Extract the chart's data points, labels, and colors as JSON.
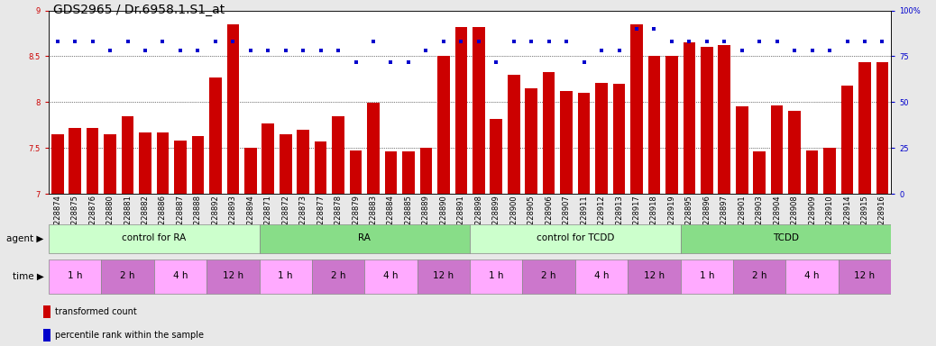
{
  "title": "GDS2965 / Dr.6958.1.S1_at",
  "samples": [
    "GSM228874",
    "GSM228875",
    "GSM228876",
    "GSM228880",
    "GSM228881",
    "GSM228882",
    "GSM228886",
    "GSM228887",
    "GSM228888",
    "GSM228892",
    "GSM228893",
    "GSM228894",
    "GSM228871",
    "GSM228872",
    "GSM228873",
    "GSM228877",
    "GSM228878",
    "GSM228879",
    "GSM228883",
    "GSM228884",
    "GSM228885",
    "GSM228889",
    "GSM228890",
    "GSM228891",
    "GSM228898",
    "GSM228899",
    "GSM228900",
    "GSM228905",
    "GSM228906",
    "GSM228907",
    "GSM228911",
    "GSM228912",
    "GSM228913",
    "GSM228917",
    "GSM228918",
    "GSM228919",
    "GSM228895",
    "GSM228896",
    "GSM228897",
    "GSM228901",
    "GSM228903",
    "GSM228904",
    "GSM228908",
    "GSM228909",
    "GSM228910",
    "GSM228914",
    "GSM228915",
    "GSM228916"
  ],
  "bar_values": [
    7.65,
    7.72,
    7.72,
    7.65,
    7.85,
    7.67,
    7.67,
    7.58,
    7.63,
    8.27,
    8.85,
    7.5,
    7.77,
    7.65,
    7.7,
    7.57,
    7.85,
    7.47,
    7.99,
    7.46,
    7.46,
    7.5,
    8.5,
    8.82,
    8.82,
    7.82,
    8.3,
    8.15,
    8.33,
    8.12,
    8.1,
    8.21,
    8.2,
    8.85,
    8.5,
    8.5,
    8.65,
    8.6,
    8.62,
    7.95,
    7.46,
    7.96,
    7.9,
    7.47,
    7.5,
    8.18,
    8.44,
    8.44
  ],
  "percentile_values": [
    83,
    83,
    83,
    78,
    83,
    78,
    83,
    78,
    78,
    83,
    83,
    78,
    78,
    78,
    78,
    78,
    78,
    72,
    83,
    72,
    72,
    78,
    83,
    83,
    83,
    72,
    83,
    83,
    83,
    83,
    72,
    78,
    78,
    90,
    90,
    83,
    83,
    83,
    83,
    78,
    83,
    83,
    78,
    78,
    78,
    83,
    83,
    83
  ],
  "ylim_left": [
    7.0,
    9.0
  ],
  "ylim_right": [
    0,
    100
  ],
  "yticks_left": [
    7.0,
    7.5,
    8.0,
    8.5,
    9.0
  ],
  "yticks_right": [
    0,
    25,
    50,
    75,
    100
  ],
  "ytick_labels_right": [
    "0",
    "25",
    "50",
    "75",
    "100%"
  ],
  "bar_color": "#cc0000",
  "dot_color": "#0000cc",
  "agent_groups": [
    {
      "label": "control for RA",
      "start": 0,
      "end": 12,
      "color": "#ccffcc"
    },
    {
      "label": "RA",
      "start": 12,
      "end": 24,
      "color": "#88dd88"
    },
    {
      "label": "control for TCDD",
      "start": 24,
      "end": 36,
      "color": "#ccffcc"
    },
    {
      "label": "TCDD",
      "start": 36,
      "end": 48,
      "color": "#88dd88"
    }
  ],
  "time_groups": [
    {
      "label": "1 h",
      "start": 0,
      "end": 3,
      "color": "#ffaaff"
    },
    {
      "label": "2 h",
      "start": 3,
      "end": 6,
      "color": "#cc77cc"
    },
    {
      "label": "4 h",
      "start": 6,
      "end": 9,
      "color": "#ffaaff"
    },
    {
      "label": "12 h",
      "start": 9,
      "end": 12,
      "color": "#cc77cc"
    },
    {
      "label": "1 h",
      "start": 12,
      "end": 15,
      "color": "#ffaaff"
    },
    {
      "label": "2 h",
      "start": 15,
      "end": 18,
      "color": "#cc77cc"
    },
    {
      "label": "4 h",
      "start": 18,
      "end": 21,
      "color": "#ffaaff"
    },
    {
      "label": "12 h",
      "start": 21,
      "end": 24,
      "color": "#cc77cc"
    },
    {
      "label": "1 h",
      "start": 24,
      "end": 27,
      "color": "#ffaaff"
    },
    {
      "label": "2 h",
      "start": 27,
      "end": 30,
      "color": "#cc77cc"
    },
    {
      "label": "4 h",
      "start": 30,
      "end": 33,
      "color": "#ffaaff"
    },
    {
      "label": "12 h",
      "start": 33,
      "end": 36,
      "color": "#cc77cc"
    },
    {
      "label": "1 h",
      "start": 36,
      "end": 39,
      "color": "#ffaaff"
    },
    {
      "label": "2 h",
      "start": 39,
      "end": 42,
      "color": "#cc77cc"
    },
    {
      "label": "4 h",
      "start": 42,
      "end": 45,
      "color": "#ffaaff"
    },
    {
      "label": "12 h",
      "start": 45,
      "end": 48,
      "color": "#cc77cc"
    }
  ],
  "legend_items": [
    {
      "label": "transformed count",
      "color": "#cc0000"
    },
    {
      "label": "percentile rank within the sample",
      "color": "#0000cc"
    }
  ],
  "bg_color": "#e8e8e8",
  "plot_bg": "#ffffff",
  "title_fontsize": 10,
  "tick_fontsize": 6,
  "label_fontsize": 7.5,
  "annot_fontsize": 7.5
}
